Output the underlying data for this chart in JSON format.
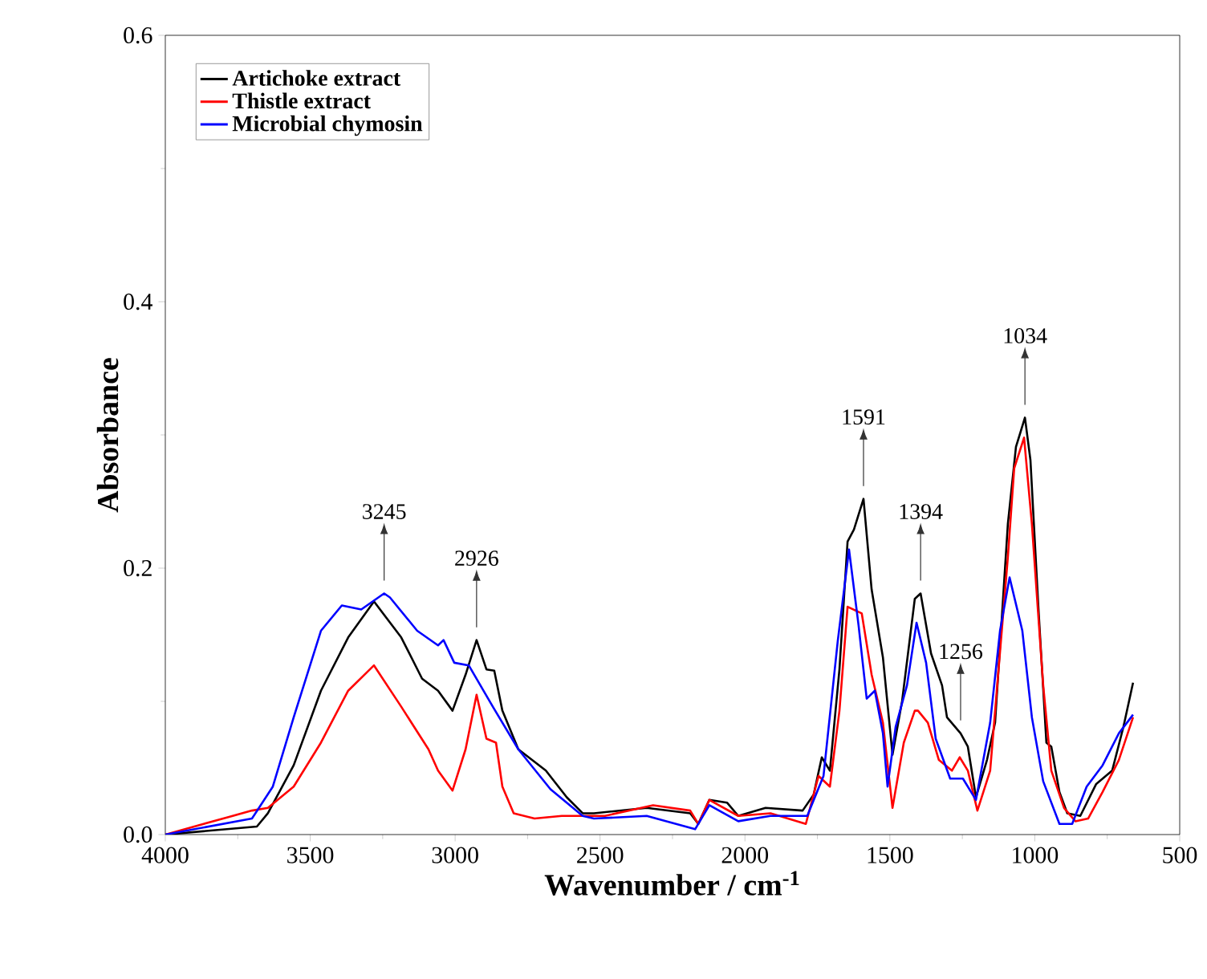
{
  "chart_data": {
    "type": "line",
    "xlabel": "Wavenumber / cm$^{-1}$",
    "ylabel": "Absorbance",
    "xlim": [
      4000,
      500
    ],
    "xticks": [
      4000,
      3500,
      3000,
      2500,
      2000,
      1500,
      1000,
      500
    ],
    "ylim": [
      0,
      0.6
    ],
    "yticks": [
      {
        "value": 0,
        "label": "0.0"
      },
      {
        "value": 0.2,
        "label": "0.2"
      },
      {
        "value": 0.4,
        "label": "0.4"
      },
      {
        "value": 0.6,
        "label": "0.6"
      }
    ],
    "grid": false,
    "legend": "top left",
    "marker": "none",
    "line_style": "solid",
    "series": [
      {
        "name": "Artichoke extract",
        "color": "#000000",
        "x": [
          4000,
          3684,
          3646,
          3557,
          3463,
          3369,
          3280,
          3186,
          3114,
          3059,
          3009,
          2964,
          2926,
          2892,
          2865,
          2837,
          2782,
          2687,
          2615,
          2560,
          2521,
          2339,
          2189,
          2161,
          2123,
          2062,
          2023,
          1929,
          1801,
          1763,
          1735,
          1707,
          1674,
          1646,
          1624,
          1591,
          1563,
          1524,
          1491,
          1458,
          1414,
          1394,
          1358,
          1320,
          1303,
          1256,
          1231,
          1203,
          1165,
          1137,
          1093,
          1065,
          1034,
          1015,
          988,
          960,
          943,
          915,
          888,
          843,
          788,
          733,
          694,
          661
        ],
        "values": [
          0.0,
          0.006,
          0.016,
          0.052,
          0.108,
          0.148,
          0.175,
          0.148,
          0.117,
          0.108,
          0.093,
          0.12,
          0.146,
          0.124,
          0.123,
          0.093,
          0.064,
          0.048,
          0.028,
          0.016,
          0.016,
          0.02,
          0.016,
          0.008,
          0.026,
          0.024,
          0.014,
          0.02,
          0.018,
          0.03,
          0.058,
          0.048,
          0.124,
          0.22,
          0.229,
          0.252,
          0.184,
          0.133,
          0.06,
          0.1,
          0.177,
          0.181,
          0.136,
          0.112,
          0.088,
          0.076,
          0.066,
          0.028,
          0.056,
          0.084,
          0.233,
          0.291,
          0.313,
          0.281,
          0.172,
          0.069,
          0.066,
          0.032,
          0.016,
          0.014,
          0.038,
          0.048,
          0.081,
          0.114
        ]
      },
      {
        "name": "Thistle extract",
        "color": "#ff0000",
        "x": [
          4000,
          3701,
          3646,
          3557,
          3463,
          3369,
          3280,
          3186,
          3092,
          3059,
          3009,
          2964,
          2926,
          2892,
          2859,
          2837,
          2798,
          2726,
          2632,
          2483,
          2317,
          2189,
          2161,
          2123,
          2023,
          1912,
          1790,
          1746,
          1707,
          1674,
          1646,
          1597,
          1563,
          1524,
          1491,
          1452,
          1414,
          1403,
          1369,
          1331,
          1286,
          1259,
          1231,
          1198,
          1154,
          1093,
          1071,
          1037,
          1010,
          971,
          943,
          899,
          860,
          816,
          766,
          710,
          661
        ],
        "values": [
          0.0,
          0.018,
          0.02,
          0.036,
          0.069,
          0.108,
          0.127,
          0.096,
          0.064,
          0.048,
          0.033,
          0.064,
          0.105,
          0.072,
          0.069,
          0.036,
          0.016,
          0.012,
          0.014,
          0.014,
          0.022,
          0.018,
          0.008,
          0.026,
          0.014,
          0.016,
          0.008,
          0.044,
          0.036,
          0.093,
          0.171,
          0.166,
          0.12,
          0.084,
          0.02,
          0.069,
          0.093,
          0.093,
          0.084,
          0.056,
          0.048,
          0.058,
          0.048,
          0.018,
          0.048,
          0.208,
          0.275,
          0.298,
          0.233,
          0.112,
          0.048,
          0.02,
          0.01,
          0.012,
          0.032,
          0.056,
          0.088
        ]
      },
      {
        "name": "Microbial chymosin",
        "color": "#0000ff",
        "x": [
          4000,
          3701,
          3629,
          3557,
          3463,
          3391,
          3324,
          3245,
          3225,
          3131,
          3059,
          3040,
          3003,
          2953,
          2870,
          2782,
          2671,
          2560,
          2521,
          2339,
          2172,
          2123,
          2023,
          1912,
          1785,
          1729,
          1680,
          1641,
          1608,
          1580,
          1552,
          1524,
          1508,
          1480,
          1441,
          1408,
          1375,
          1342,
          1292,
          1248,
          1203,
          1154,
          1120,
          1087,
          1043,
          1010,
          971,
          915,
          871,
          821,
          766,
          710,
          661
        ],
        "values": [
          0.0,
          0.012,
          0.036,
          0.088,
          0.153,
          0.172,
          0.169,
          0.181,
          0.178,
          0.153,
          0.142,
          0.146,
          0.129,
          0.127,
          0.096,
          0.064,
          0.034,
          0.014,
          0.012,
          0.014,
          0.004,
          0.022,
          0.01,
          0.014,
          0.014,
          0.044,
          0.145,
          0.214,
          0.157,
          0.102,
          0.108,
          0.076,
          0.036,
          0.081,
          0.112,
          0.159,
          0.129,
          0.072,
          0.042,
          0.042,
          0.026,
          0.084,
          0.153,
          0.193,
          0.153,
          0.088,
          0.04,
          0.008,
          0.008,
          0.036,
          0.052,
          0.076,
          0.09
        ]
      }
    ],
    "annotations": [
      {
        "text": "3245",
        "x": 3245,
        "y": 0.181
      },
      {
        "text": "2926",
        "x": 2926,
        "y": 0.146
      },
      {
        "text": "1591",
        "x": 1591,
        "y": 0.252
      },
      {
        "text": "1394",
        "x": 1394,
        "y": 0.181
      },
      {
        "text": "1256",
        "x": 1256,
        "y": 0.076
      },
      {
        "text": "1034",
        "x": 1034,
        "y": 0.313
      }
    ]
  }
}
